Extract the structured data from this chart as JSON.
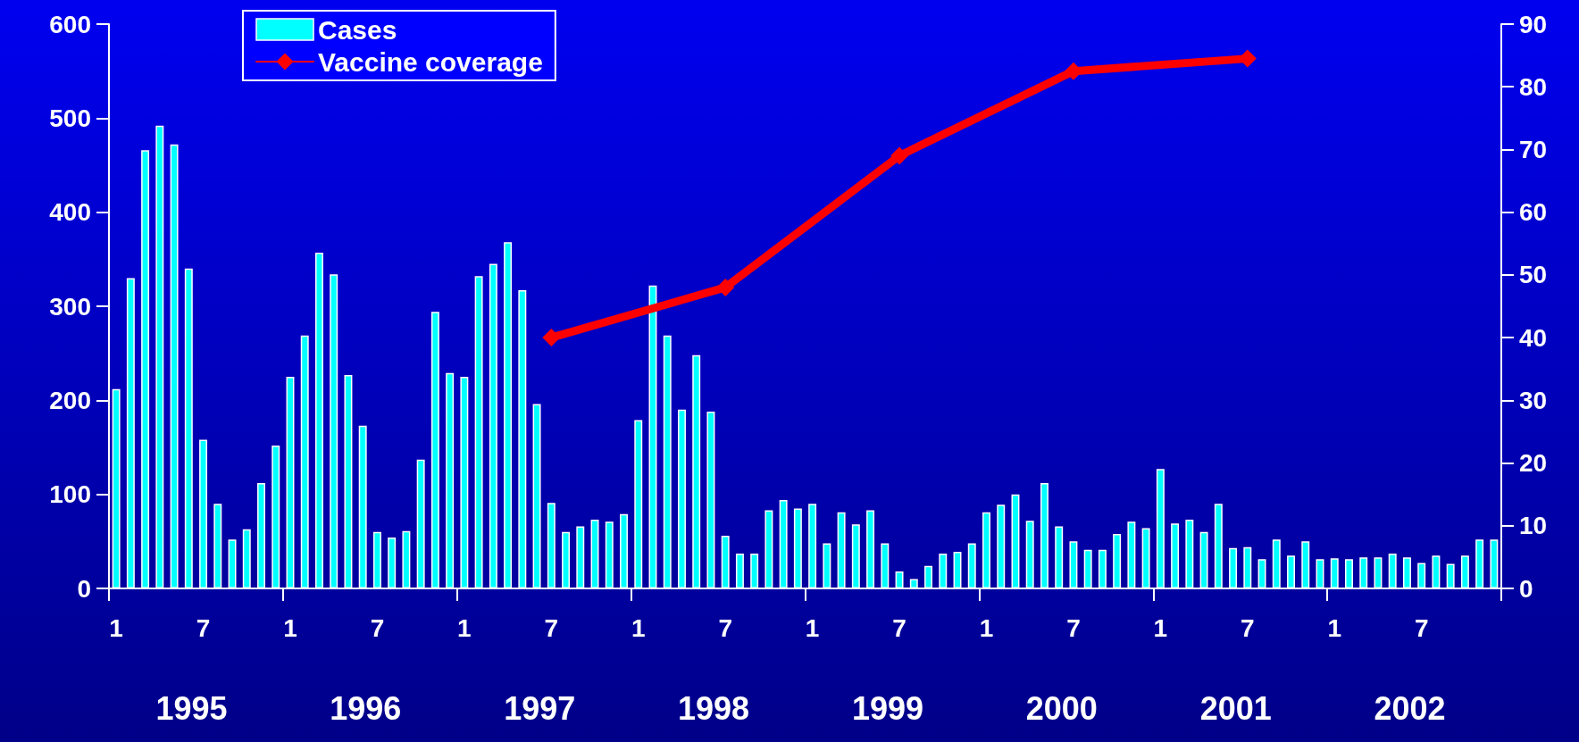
{
  "chart_data": {
    "type": "bar",
    "categories": [
      "1",
      null,
      null,
      null,
      null,
      null,
      "7",
      null,
      null,
      null,
      null,
      null,
      "1",
      null,
      null,
      null,
      null,
      null,
      "7",
      null,
      null,
      null,
      null,
      null,
      "1",
      null,
      null,
      null,
      null,
      null,
      "7",
      null,
      null,
      null,
      null,
      null,
      "1",
      null,
      null,
      null,
      null,
      null,
      "7",
      null,
      null,
      null,
      null,
      null,
      "1",
      null,
      null,
      null,
      null,
      null,
      "7",
      null,
      null,
      null,
      null,
      null,
      "1",
      null,
      null,
      null,
      null,
      null,
      "7",
      null,
      null,
      null,
      null,
      null,
      "1",
      null,
      null,
      null,
      null,
      null,
      "7",
      null,
      null,
      null,
      null,
      null,
      "1",
      null,
      null,
      null,
      null,
      null,
      "7",
      null,
      null,
      null,
      null,
      null
    ],
    "series": [
      {
        "name": "Cases",
        "color": "#00ffff",
        "values": [
          212,
          330,
          466,
          492,
          472,
          340,
          158,
          90,
          52,
          63,
          112,
          152,
          225,
          269,
          357,
          334,
          227,
          173,
          60,
          54,
          61,
          137,
          294,
          229,
          225,
          332,
          345,
          368,
          317,
          196,
          91,
          60,
          66,
          73,
          71,
          79,
          179,
          322,
          269,
          190,
          248,
          188,
          56,
          37,
          37,
          83,
          94,
          85,
          90,
          48,
          81,
          68,
          83,
          48,
          18,
          10,
          24,
          37,
          39,
          48,
          81,
          89,
          100,
          72,
          112,
          66,
          50,
          41,
          41,
          58,
          71,
          64,
          127,
          69,
          73,
          60,
          90,
          43,
          44,
          31,
          52,
          35,
          50,
          31,
          32,
          31,
          33,
          33,
          37,
          33,
          27,
          35,
          26,
          35,
          52,
          52
        ]
      },
      {
        "name": "Vaccine coverage",
        "type": "line",
        "axis": "y2",
        "color": "#ff0000",
        "marker": "diamond",
        "values": [
          null,
          null,
          null,
          null,
          null,
          null,
          null,
          null,
          null,
          null,
          null,
          null,
          null,
          null,
          null,
          null,
          null,
          null,
          null,
          null,
          null,
          null,
          null,
          null,
          null,
          null,
          null,
          null,
          null,
          null,
          40,
          null,
          null,
          null,
          null,
          null,
          null,
          null,
          null,
          null,
          null,
          null,
          48,
          null,
          null,
          null,
          null,
          null,
          null,
          null,
          null,
          null,
          null,
          null,
          69,
          null,
          null,
          null,
          null,
          null,
          null,
          null,
          null,
          null,
          null,
          null,
          82.5,
          null,
          null,
          null,
          null,
          null,
          null,
          null,
          null,
          null,
          null,
          null,
          84.5,
          null,
          null,
          null,
          null,
          null,
          null,
          null,
          null,
          null,
          null,
          null,
          null,
          null,
          null,
          null,
          null,
          null
        ]
      }
    ],
    "ylim": [
      0,
      600
    ],
    "yticks": [
      0,
      100,
      200,
      300,
      400,
      500,
      600
    ],
    "y2lim": [
      0,
      90
    ],
    "y2ticks": [
      0,
      10,
      20,
      30,
      40,
      50,
      60,
      70,
      80,
      90
    ],
    "legend": "top left",
    "annotations": [
      "1995",
      "1996",
      "1997",
      "1998",
      "1999",
      "2000",
      "2001",
      "2002"
    ]
  }
}
